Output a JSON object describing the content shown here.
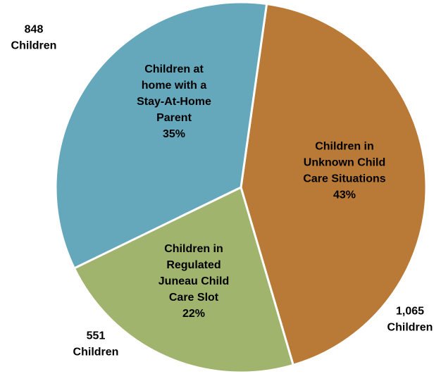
{
  "chart_data": {
    "type": "pie",
    "title": "",
    "slices": [
      {
        "label_lines": [
          "Children in",
          "Unknown Child",
          "Care Situations"
        ],
        "percent_label": "43%",
        "count_lines": [
          "1,065",
          "Children"
        ],
        "value": 1065,
        "percent": 43,
        "color": "#b97a37"
      },
      {
        "label_lines": [
          "Children in",
          "Regulated",
          "Juneau Child",
          "Care Slot"
        ],
        "percent_label": "22%",
        "count_lines": [
          "551",
          "Children"
        ],
        "value": 551,
        "percent": 22,
        "color": "#a1b46e"
      },
      {
        "label_lines": [
          "Children at",
          "home with a",
          "Stay-At-Home",
          "Parent"
        ],
        "percent_label": "35%",
        "count_lines": [
          "848",
          "Children"
        ],
        "value": 848,
        "percent": 35,
        "color": "#65a8bc"
      }
    ],
    "start_angle_deg": 8,
    "legend": "none"
  }
}
